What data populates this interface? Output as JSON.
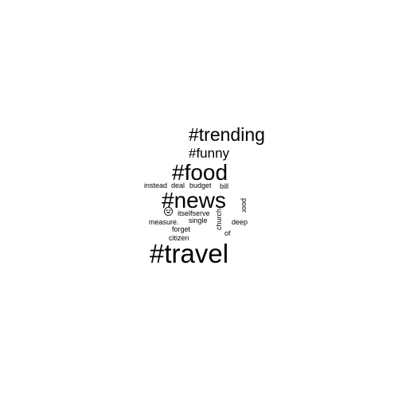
{
  "word_cloud": {
    "words": {
      "trending": "#trending",
      "funny": "#funny",
      "food": "#food",
      "instead": "instead",
      "deal": "deal",
      "budget": "budget",
      "bill": "bill",
      "news": "#news",
      "poor": "poor",
      "itselfserve": "itselfserve",
      "church": "church",
      "measure": "measure.",
      "single": "single",
      "deep": "deep",
      "forget": "forget",
      "of": "of",
      "citizen": "citizen",
      "travel": "#travel"
    },
    "icons": {
      "emoji": "grinning-face-icon"
    },
    "colors": {
      "text": "#000000",
      "background": "#ffffff"
    }
  }
}
